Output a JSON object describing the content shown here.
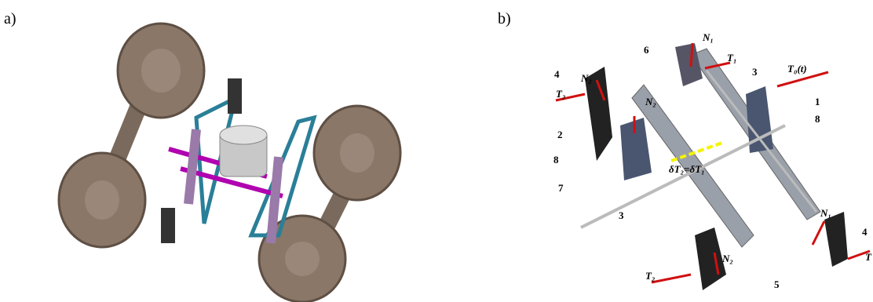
{
  "panel_a": {
    "label": "a)"
  },
  "panel_b": {
    "label": "b)",
    "callouts": [
      "N₁",
      "6",
      "T₁",
      "3",
      "T₀(t)",
      "4",
      "N₂",
      "T₂",
      "1",
      "N₂",
      "8",
      "2",
      "8",
      "δT₂=δT₁",
      "7",
      "N₁",
      "4",
      "T",
      "3",
      "N₂",
      "5",
      "T₂"
    ]
  }
}
